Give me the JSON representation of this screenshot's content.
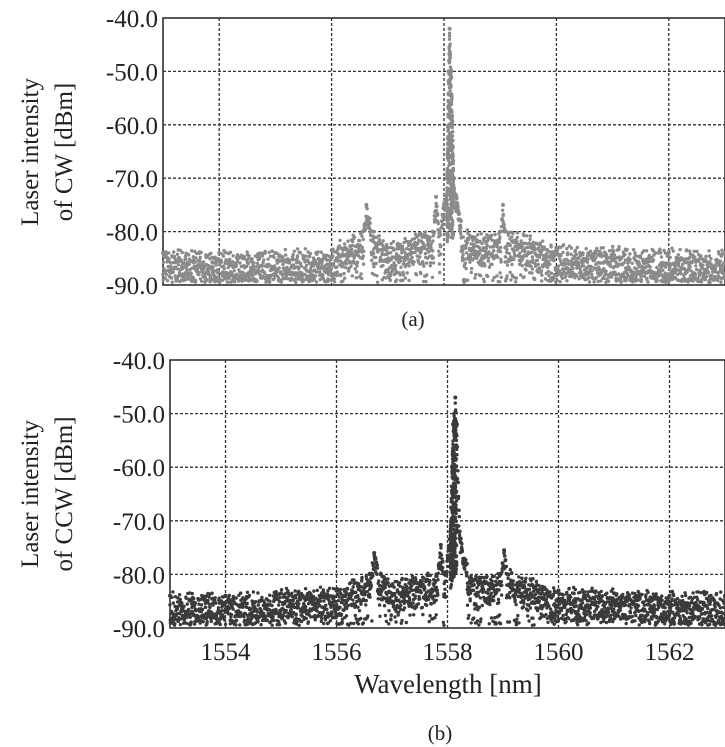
{
  "chart_data": [
    {
      "type": "scatter",
      "title": "",
      "caption": "(a)",
      "ylabel_line1": "Laser intensity",
      "ylabel_line2": "of CW [dBm]",
      "xlabel": "",
      "xlim": [
        1553,
        1563
      ],
      "ylim": [
        -90,
        -40
      ],
      "xticks": [
        1554,
        1556,
        1558,
        1560,
        1562
      ],
      "xtick_labels": [],
      "yticks": [
        -40,
        -50,
        -60,
        -70,
        -80,
        -90
      ],
      "ytick_labels": [
        "-40.0",
        "-50.0",
        "-60.0",
        "-70.0",
        "-80.0",
        "-90.0"
      ],
      "grid": true,
      "color": "#8a8a8a",
      "noise_floor": {
        "center_dbm": -84.5,
        "spread_dbm": 5.5,
        "min_dbm": -89.5
      },
      "x": [
        1553.0,
        1554.0,
        1555.0,
        1556.0,
        1556.55,
        1556.62,
        1556.75,
        1557.0,
        1557.8,
        1557.86,
        1557.92,
        1558.05,
        1558.08,
        1558.1,
        1558.13,
        1558.18,
        1558.3,
        1558.5,
        1559.0,
        1559.05,
        1559.1,
        1560.0,
        1561.0,
        1562.0,
        1563.0
      ],
      "y": [
        -84.0,
        -84.0,
        -84.0,
        -83.5,
        -80.0,
        -75.0,
        -80.0,
        -83.0,
        -80.0,
        -73.5,
        -80.0,
        -70.0,
        -50.0,
        -42.0,
        -50.0,
        -70.0,
        -78.0,
        -81.0,
        -80.0,
        -75.0,
        -80.0,
        -83.0,
        -83.5,
        -84.0,
        -84.0
      ]
    },
    {
      "type": "scatter",
      "title": "",
      "caption": "(b)",
      "ylabel_line1": "Laser intensity",
      "ylabel_line2": "of CCW [dBm]",
      "xlabel": "Wavelength [nm]",
      "xlim": [
        1553,
        1563
      ],
      "ylim": [
        -90,
        -40
      ],
      "xticks": [
        1554,
        1556,
        1558,
        1560,
        1562
      ],
      "xtick_labels": [
        "1554",
        "1556",
        "1558",
        "1560",
        "1562"
      ],
      "yticks": [
        -40,
        -50,
        -60,
        -70,
        -80,
        -90
      ],
      "ytick_labels": [
        "-40.0",
        "-50.0",
        "-60.0",
        "-70.0",
        "-80.0",
        "-90.0"
      ],
      "grid": true,
      "color": "#3a3a3a",
      "noise_floor": {
        "center_dbm": -84.0,
        "spread_dbm": 5.0,
        "min_dbm": -89.5
      },
      "x": [
        1553.0,
        1554.0,
        1555.0,
        1556.0,
        1556.6,
        1556.68,
        1556.8,
        1557.0,
        1557.8,
        1557.88,
        1557.95,
        1558.05,
        1558.1,
        1558.14,
        1558.17,
        1558.22,
        1558.35,
        1558.5,
        1558.95,
        1559.02,
        1559.1,
        1560.0,
        1561.0,
        1562.0,
        1563.0
      ],
      "y": [
        -84.0,
        -84.0,
        -83.5,
        -83.0,
        -80.0,
        -76.0,
        -80.0,
        -82.0,
        -80.0,
        -74.5,
        -80.0,
        -72.0,
        -52.0,
        -47.0,
        -52.0,
        -72.0,
        -78.0,
        -81.0,
        -80.0,
        -75.5,
        -80.0,
        -83.0,
        -83.5,
        -84.0,
        -84.0
      ]
    }
  ]
}
